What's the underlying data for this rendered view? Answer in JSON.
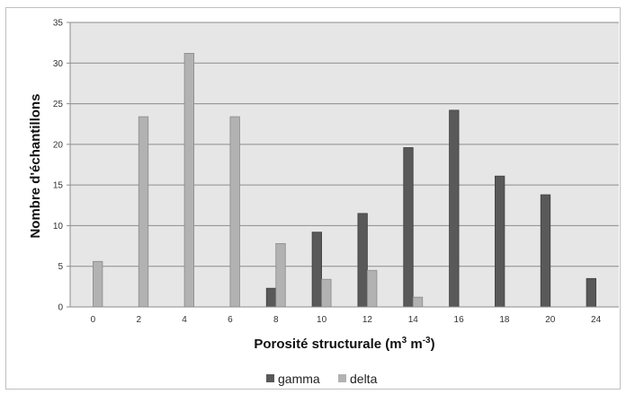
{
  "chart_data": {
    "type": "bar",
    "categories": [
      "0",
      "2",
      "4",
      "6",
      "8",
      "10",
      "12",
      "14",
      "16",
      "18",
      "20",
      "24"
    ],
    "series": [
      {
        "name": "gamma",
        "color": "#595959",
        "values": [
          0,
          0,
          0,
          0,
          2.3,
          9.2,
          11.5,
          19.6,
          24.2,
          16.1,
          13.8,
          3.5
        ]
      },
      {
        "name": "delta",
        "color": "#b2b2b2",
        "values": [
          5.6,
          23.4,
          31.2,
          23.4,
          7.8,
          3.4,
          4.5,
          1.2,
          0,
          0,
          0,
          0
        ]
      }
    ],
    "xlabel": {
      "main": "Porosité structurale (m",
      "sup1": "3",
      "mid": " m",
      "sup2": "-3",
      "end": ")"
    },
    "ylabel": "Nombre d'échantillons",
    "ylim": [
      0,
      35
    ],
    "yticks": [
      "0",
      "5",
      "10",
      "15",
      "20",
      "25",
      "30",
      "35"
    ],
    "grid": true,
    "plot_background": "#e6e6e6",
    "legend_position": "bottom"
  }
}
